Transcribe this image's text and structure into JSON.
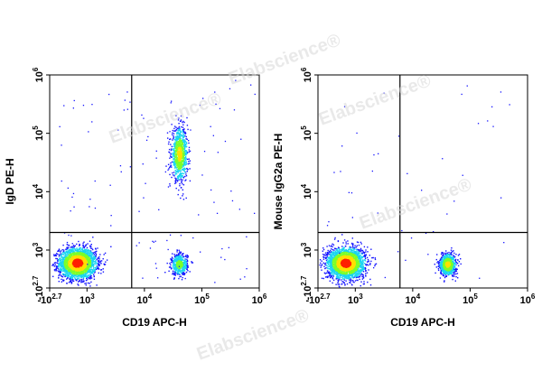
{
  "watermark": "Elabscience®",
  "chart_data": [
    {
      "type": "scatter",
      "subtype": "flow-cytometry-density-dot-plot",
      "xlabel": "CD19 APC-H",
      "ylabel": "IgD PE-H",
      "x_scale": "biexponential",
      "y_scale": "biexponential",
      "x_ticks": [
        "-10^2.7",
        "10^3",
        "10^4",
        "10^5",
        "10^6"
      ],
      "y_ticks": [
        "-10^2.7",
        "10^3",
        "10^4",
        "10^5",
        "10^6"
      ],
      "xlim": [
        "-10^2.7",
        "10^6"
      ],
      "ylim": [
        "-10^2.7",
        "10^6"
      ],
      "gate": {
        "x": 6000,
        "y": 2000
      },
      "populations": [
        {
          "x_center": 600,
          "y_center": 500,
          "relative_density": "very high",
          "color": "#ff2a00"
        },
        {
          "x_center": 40000,
          "y_center": 45000,
          "relative_density": "high",
          "color": "#00c8ff"
        },
        {
          "x_center": 40000,
          "y_center": 450,
          "relative_density": "medium",
          "color": "#1e5cff"
        }
      ],
      "colors": {
        "low": "#1414ff",
        "mid": "#19d5f0",
        "mid2": "#7cff2a",
        "high": "#ffe000",
        "max": "#ff2000"
      }
    },
    {
      "type": "scatter",
      "subtype": "flow-cytometry-density-dot-plot",
      "xlabel": "CD19 APC-H",
      "ylabel": "Mouse IgG2a PE-H",
      "x_scale": "biexponential",
      "y_scale": "biexponential",
      "x_ticks": [
        "-10^2.7",
        "10^3",
        "10^4",
        "10^5",
        "10^6"
      ],
      "y_ticks": [
        "-10^2.7",
        "10^3",
        "10^4",
        "10^5",
        "10^6"
      ],
      "xlim": [
        "-10^2.7",
        "10^6"
      ],
      "ylim": [
        "-10^2.7",
        "10^6"
      ],
      "gate": {
        "x": 6000,
        "y": 2000
      },
      "populations": [
        {
          "x_center": 600,
          "y_center": 500,
          "relative_density": "very high",
          "color": "#ff2a00"
        },
        {
          "x_center": 40000,
          "y_center": 450,
          "relative_density": "high",
          "color": "#19d5f0"
        }
      ],
      "colors": {
        "low": "#1414ff",
        "mid": "#19d5f0",
        "mid2": "#7cff2a",
        "high": "#ffe000",
        "max": "#ff2000"
      }
    }
  ]
}
